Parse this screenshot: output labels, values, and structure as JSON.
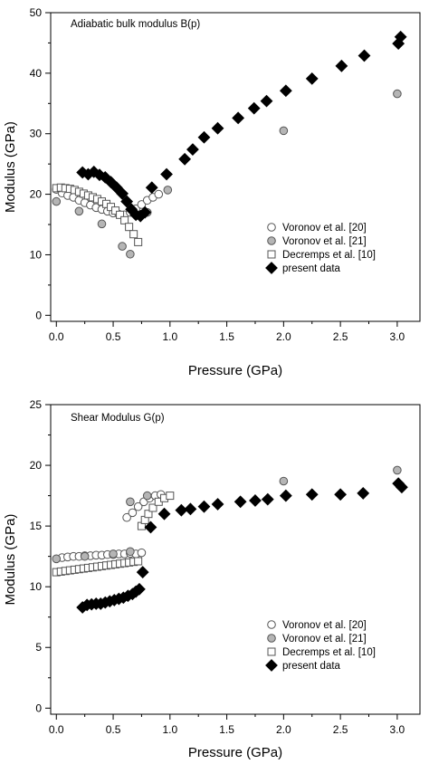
{
  "chart_data": [
    {
      "type": "scatter",
      "title": "Adiabatic bulk modulus B(p)",
      "xlabel": "Pressure (GPa)",
      "ylabel": "Modulus (GPa)",
      "xlim": [
        -0.05,
        3.2
      ],
      "ylim": [
        -1,
        50
      ],
      "xticks": [
        "0.0",
        "0.5",
        "1.0",
        "1.5",
        "2.0",
        "2.5",
        "3.0"
      ],
      "yticks": [
        "0",
        "10",
        "20",
        "30",
        "40",
        "50"
      ],
      "legend_position": "right-middle",
      "series": [
        {
          "name": "Voronov et al. [20]",
          "marker": "circle-open",
          "points": [
            [
              0.0,
              20.8
            ],
            [
              0.05,
              20.2
            ],
            [
              0.1,
              19.8
            ],
            [
              0.15,
              19.5
            ],
            [
              0.2,
              19.0
            ],
            [
              0.25,
              18.6
            ],
            [
              0.3,
              18.2
            ],
            [
              0.35,
              17.8
            ],
            [
              0.4,
              17.5
            ],
            [
              0.45,
              17.2
            ],
            [
              0.5,
              16.9
            ],
            [
              0.55,
              16.7
            ],
            [
              0.6,
              16.6
            ],
            [
              0.65,
              17.0
            ],
            [
              0.7,
              17.6
            ],
            [
              0.75,
              18.3
            ],
            [
              0.8,
              19.0
            ],
            [
              0.85,
              19.5
            ],
            [
              0.9,
              20.0
            ]
          ]
        },
        {
          "name": "Voronov et al. [21]",
          "marker": "circle-gray",
          "points": [
            [
              0.0,
              18.8
            ],
            [
              0.2,
              17.2
            ],
            [
              0.4,
              15.1
            ],
            [
              0.58,
              11.4
            ],
            [
              0.65,
              10.1
            ],
            [
              0.8,
              17.0
            ],
            [
              0.98,
              20.7
            ],
            [
              2.0,
              30.5
            ],
            [
              3.0,
              36.6
            ]
          ]
        },
        {
          "name": "Decremps et al. [10]",
          "marker": "square-open",
          "points": [
            [
              0.0,
              21.0
            ],
            [
              0.04,
              21.1
            ],
            [
              0.08,
              21.0
            ],
            [
              0.12,
              20.9
            ],
            [
              0.16,
              20.7
            ],
            [
              0.2,
              20.4
            ],
            [
              0.24,
              20.1
            ],
            [
              0.28,
              19.8
            ],
            [
              0.32,
              19.5
            ],
            [
              0.36,
              19.2
            ],
            [
              0.4,
              18.8
            ],
            [
              0.44,
              18.4
            ],
            [
              0.48,
              17.9
            ],
            [
              0.52,
              17.3
            ],
            [
              0.56,
              16.6
            ],
            [
              0.6,
              15.7
            ],
            [
              0.64,
              14.6
            ],
            [
              0.68,
              13.4
            ],
            [
              0.72,
              12.1
            ]
          ]
        },
        {
          "name": "present data",
          "marker": "diamond-filled",
          "points": [
            [
              0.23,
              23.6
            ],
            [
              0.28,
              23.3
            ],
            [
              0.33,
              23.7
            ],
            [
              0.38,
              23.2
            ],
            [
              0.43,
              22.8
            ],
            [
              0.48,
              22.0
            ],
            [
              0.53,
              21.1
            ],
            [
              0.58,
              20.1
            ],
            [
              0.62,
              18.8
            ],
            [
              0.66,
              17.5
            ],
            [
              0.7,
              16.6
            ],
            [
              0.74,
              16.4
            ],
            [
              0.78,
              17.0
            ],
            [
              0.84,
              21.1
            ],
            [
              0.97,
              23.3
            ],
            [
              1.13,
              25.8
            ],
            [
              1.2,
              27.4
            ],
            [
              1.3,
              29.4
            ],
            [
              1.42,
              30.9
            ],
            [
              1.6,
              32.6
            ],
            [
              1.74,
              34.2
            ],
            [
              1.85,
              35.4
            ],
            [
              2.02,
              37.1
            ],
            [
              2.25,
              39.1
            ],
            [
              2.51,
              41.2
            ],
            [
              2.71,
              42.9
            ],
            [
              3.01,
              44.9
            ],
            [
              3.03,
              46.0
            ]
          ]
        }
      ]
    },
    {
      "type": "scatter",
      "title": "Shear Modulus G(p)",
      "xlabel": "Pressure (GPa)",
      "ylabel": "Modulus (GPa)",
      "xlim": [
        -0.05,
        3.2
      ],
      "ylim": [
        -0.5,
        25
      ],
      "xticks": [
        "0.0",
        "0.5",
        "1.0",
        "1.5",
        "2.0",
        "2.5",
        "3.0"
      ],
      "yticks": [
        "0",
        "5",
        "10",
        "15",
        "20",
        "25"
      ],
      "legend_position": "right-middle",
      "series": [
        {
          "name": "Voronov et al. [20]",
          "marker": "circle-open",
          "points": [
            [
              0.05,
              12.4
            ],
            [
              0.1,
              12.45
            ],
            [
              0.15,
              12.5
            ],
            [
              0.2,
              12.5
            ],
            [
              0.25,
              12.55
            ],
            [
              0.3,
              12.55
            ],
            [
              0.35,
              12.6
            ],
            [
              0.4,
              12.6
            ],
            [
              0.45,
              12.65
            ],
            [
              0.5,
              12.65
            ],
            [
              0.55,
              12.7
            ],
            [
              0.6,
              12.7
            ],
            [
              0.65,
              12.75
            ],
            [
              0.7,
              12.7
            ],
            [
              0.75,
              12.8
            ],
            [
              0.62,
              15.7
            ],
            [
              0.67,
              16.1
            ],
            [
              0.72,
              16.6
            ],
            [
              0.77,
              17.0
            ],
            [
              0.82,
              17.3
            ],
            [
              0.87,
              17.5
            ],
            [
              0.92,
              17.6
            ]
          ]
        },
        {
          "name": "Voronov et al. [21]",
          "marker": "circle-gray",
          "points": [
            [
              0.0,
              12.3
            ],
            [
              0.25,
              12.5
            ],
            [
              0.5,
              12.7
            ],
            [
              0.65,
              12.9
            ],
            [
              0.65,
              17.0
            ],
            [
              0.8,
              17.5
            ],
            [
              2.0,
              18.7
            ],
            [
              3.0,
              19.6
            ]
          ]
        },
        {
          "name": "Decremps et al. [10]",
          "marker": "square-open",
          "points": [
            [
              0.0,
              11.2
            ],
            [
              0.04,
              11.25
            ],
            [
              0.08,
              11.3
            ],
            [
              0.12,
              11.35
            ],
            [
              0.16,
              11.4
            ],
            [
              0.2,
              11.45
            ],
            [
              0.24,
              11.5
            ],
            [
              0.28,
              11.55
            ],
            [
              0.32,
              11.6
            ],
            [
              0.36,
              11.65
            ],
            [
              0.4,
              11.7
            ],
            [
              0.44,
              11.75
            ],
            [
              0.48,
              11.8
            ],
            [
              0.52,
              11.85
            ],
            [
              0.56,
              11.9
            ],
            [
              0.6,
              11.95
            ],
            [
              0.64,
              12.0
            ],
            [
              0.68,
              12.05
            ],
            [
              0.72,
              12.1
            ],
            [
              0.75,
              15.0
            ],
            [
              0.78,
              15.5
            ],
            [
              0.81,
              16.0
            ],
            [
              0.85,
              16.5
            ],
            [
              0.9,
              17.0
            ],
            [
              0.95,
              17.3
            ],
            [
              1.0,
              17.5
            ]
          ]
        },
        {
          "name": "present data",
          "marker": "diamond-filled",
          "points": [
            [
              0.23,
              8.3
            ],
            [
              0.27,
              8.5
            ],
            [
              0.31,
              8.55
            ],
            [
              0.35,
              8.6
            ],
            [
              0.39,
              8.6
            ],
            [
              0.43,
              8.7
            ],
            [
              0.47,
              8.8
            ],
            [
              0.51,
              8.9
            ],
            [
              0.55,
              9.0
            ],
            [
              0.59,
              9.1
            ],
            [
              0.63,
              9.25
            ],
            [
              0.67,
              9.4
            ],
            [
              0.7,
              9.6
            ],
            [
              0.73,
              9.8
            ],
            [
              0.76,
              11.2
            ],
            [
              0.83,
              14.9
            ],
            [
              0.95,
              16.0
            ],
            [
              1.1,
              16.3
            ],
            [
              1.18,
              16.4
            ],
            [
              1.3,
              16.6
            ],
            [
              1.42,
              16.8
            ],
            [
              1.62,
              17.0
            ],
            [
              1.75,
              17.1
            ],
            [
              1.86,
              17.2
            ],
            [
              2.02,
              17.5
            ],
            [
              2.25,
              17.6
            ],
            [
              2.5,
              17.6
            ],
            [
              2.7,
              17.7
            ],
            [
              3.01,
              18.5
            ],
            [
              3.04,
              18.2
            ]
          ]
        }
      ]
    }
  ]
}
